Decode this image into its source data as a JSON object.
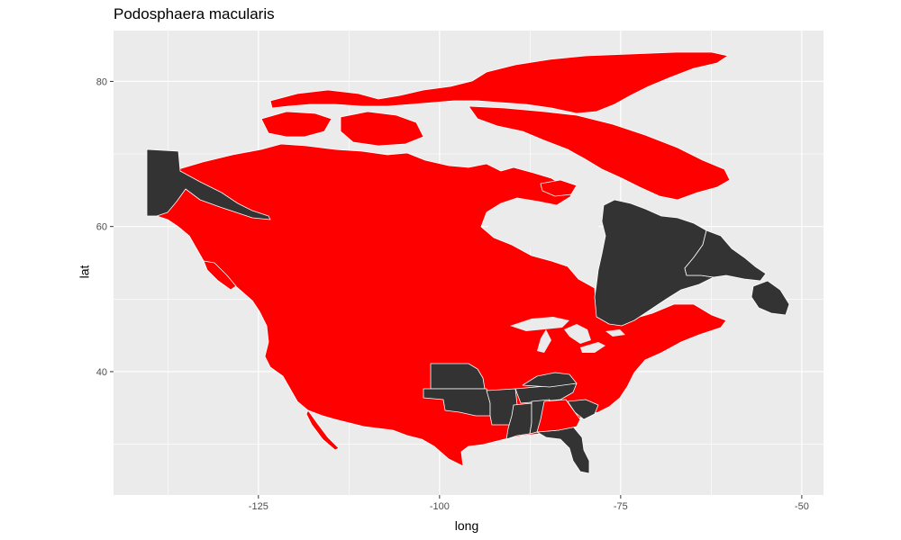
{
  "chart_data": {
    "type": "map",
    "title": "Podosphaera macularis",
    "xlabel": "long",
    "ylabel": "lat",
    "x_ticks": [
      -125,
      -100,
      -75,
      -50
    ],
    "y_ticks": [
      40,
      60,
      80
    ],
    "xlim": [
      -145,
      -47
    ],
    "ylim": [
      23,
      87
    ],
    "colors": {
      "present": "#ff0000",
      "absent": "#333333",
      "panel": "#ebebeb",
      "grid": "#ffffff",
      "border": "#ffffff"
    },
    "regions_absent": [
      "Alaska",
      "Quebec",
      "Newfoundland and Labrador",
      "Nebraska",
      "Oklahoma",
      "Arkansas",
      "Kentucky",
      "Tennessee",
      "Mississippi",
      "Alabama",
      "South Carolina",
      "Florida"
    ],
    "regions_present": [
      "Canada (other provinces and territories)",
      "Contiguous United States (other states)",
      "Georgia",
      "Mexico"
    ]
  }
}
